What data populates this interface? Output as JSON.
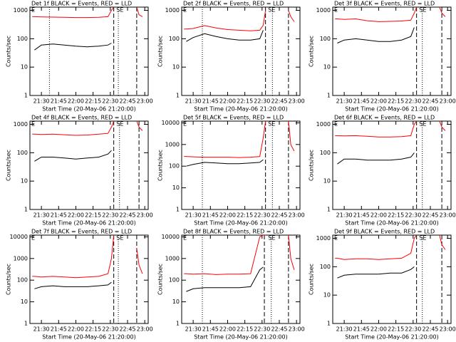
{
  "chart_data": [
    {
      "type": "line",
      "title": "Det 1f BLACK = Events, RED = LLD",
      "xlabel": "Start Time (20-May-06 21:20:00)",
      "ylabel": "Counts/sec",
      "log_y": true,
      "x": [
        "21:22",
        "21:24",
        "21:30",
        "21:40",
        "21:50",
        "22:00",
        "22:10",
        "22:20",
        "22:28",
        "22:31",
        "22:33",
        "22:40",
        "22:53",
        "22:55",
        "22:58"
      ],
      "xlim": [
        "21:20",
        "23:03"
      ],
      "xticks": [
        "21:30",
        "21:45",
        "22:00",
        "22:15",
        "22:30",
        "22:45",
        "23:00"
      ],
      "ylim": [
        1,
        1300
      ],
      "yticks": [
        1,
        10,
        100,
        1000
      ],
      "series": [
        {
          "color": "#ff0000",
          "values": [
            600,
            600,
            590,
            580,
            570,
            560,
            560,
            570,
            600,
            1000,
            1300,
            null,
            1300,
            700,
            600
          ]
        },
        {
          "color": "#000000",
          "values": [
            null,
            40,
            60,
            65,
            60,
            55,
            52,
            55,
            60,
            70,
            null,
            null,
            null,
            null,
            null
          ]
        }
      ],
      "vlines": [
        {
          "x": "21:37",
          "style": "dotted"
        },
        {
          "x": "22:33",
          "style": "dashed"
        },
        {
          "x": "22:37",
          "style": "dotted"
        },
        {
          "x": "22:53",
          "style": "dashed"
        }
      ],
      "annotations": [
        {
          "text": "E",
          "x": "21:20"
        },
        {
          "text": "SE",
          "x": "22:34"
        }
      ]
    },
    {
      "type": "line",
      "title": "Det 2f BLACK = Events, RED = LLD",
      "xlabel": "Start Time (20-May-06 21:20:00)",
      "ylabel": "Counts/sec",
      "log_y": true,
      "x": [
        "21:22",
        "21:24",
        "21:30",
        "21:40",
        "21:50",
        "22:00",
        "22:10",
        "22:20",
        "22:28",
        "22:31",
        "22:33",
        "22:40",
        "22:53",
        "22:55",
        "22:58"
      ],
      "xlim": [
        "21:20",
        "23:03"
      ],
      "xticks": [
        "21:30",
        "21:45",
        "22:00",
        "22:15",
        "22:30",
        "22:45",
        "23:00"
      ],
      "ylim": [
        1,
        1300
      ],
      "yticks": [
        1,
        10,
        100,
        1000
      ],
      "series": [
        {
          "color": "#ff0000",
          "values": [
            220,
            220,
            230,
            290,
            240,
            210,
            200,
            190,
            200,
            300,
            1000,
            null,
            1000,
            600,
            400
          ]
        },
        {
          "color": "#000000",
          "values": [
            null,
            80,
            110,
            150,
            120,
            100,
            90,
            90,
            100,
            200,
            null,
            null,
            null,
            null,
            null
          ]
        }
      ],
      "vlines": [
        {
          "x": "21:38",
          "style": "dotted"
        },
        {
          "x": "22:33",
          "style": "dashed"
        },
        {
          "x": "22:39",
          "style": "dotted"
        },
        {
          "x": "22:53",
          "style": "dashed"
        }
      ],
      "annotations": [
        {
          "text": "E",
          "x": "21:20"
        },
        {
          "text": "SE",
          "x": "22:34"
        }
      ]
    },
    {
      "type": "line",
      "title": "Det 3f BLACK = Events, RED = LLD",
      "xlabel": "Start Time (20-May-06 21:20:00)",
      "ylabel": "Counts/sec",
      "log_y": true,
      "x": [
        "21:22",
        "21:24",
        "21:30",
        "21:40",
        "21:50",
        "22:00",
        "22:10",
        "22:20",
        "22:28",
        "22:31",
        "22:33",
        "22:40",
        "22:53",
        "22:55",
        "22:58"
      ],
      "xlim": [
        "21:20",
        "23:03"
      ],
      "xticks": [
        "21:30",
        "21:45",
        "22:00",
        "22:15",
        "22:30",
        "22:45",
        "23:00"
      ],
      "ylim": [
        1,
        1300
      ],
      "yticks": [
        1,
        10,
        100,
        1000
      ],
      "series": [
        {
          "color": "#ff0000",
          "values": [
            500,
            500,
            480,
            500,
            430,
            400,
            410,
            420,
            450,
            800,
            1300,
            null,
            1300,
            800,
            600
          ]
        },
        {
          "color": "#000000",
          "values": [
            null,
            70,
            90,
            100,
            90,
            80,
            80,
            90,
            120,
            250,
            null,
            null,
            null,
            null,
            null
          ]
        }
      ],
      "vlines": [
        {
          "x": "22:33",
          "style": "dashed"
        },
        {
          "x": "22:38",
          "style": "dotted"
        },
        {
          "x": "22:55",
          "style": "dashed"
        }
      ],
      "annotations": [
        {
          "text": "E",
          "x": "21:20"
        },
        {
          "text": "SE",
          "x": "22:34"
        }
      ]
    },
    {
      "type": "line",
      "title": "Det 4f BLACK = Events, RED = LLD",
      "xlabel": "Start Time (20-May-06 21:20:00)",
      "ylabel": "Counts/sec",
      "log_y": true,
      "x": [
        "21:22",
        "21:24",
        "21:30",
        "21:40",
        "21:50",
        "22:00",
        "22:10",
        "22:20",
        "22:28",
        "22:31",
        "22:33",
        "22:40",
        "22:53",
        "22:55",
        "22:58"
      ],
      "xlim": [
        "21:20",
        "23:03"
      ],
      "xticks": [
        "21:30",
        "21:45",
        "22:00",
        "22:15",
        "22:30",
        "22:45",
        "23:00"
      ],
      "ylim": [
        1,
        1300
      ],
      "yticks": [
        1,
        10,
        100,
        1000
      ],
      "series": [
        {
          "color": "#ff0000",
          "values": [
            450,
            450,
            440,
            450,
            430,
            410,
            420,
            450,
            480,
            800,
            1300,
            null,
            1300,
            800,
            600
          ]
        },
        {
          "color": "#000000",
          "values": [
            null,
            50,
            70,
            70,
            65,
            60,
            65,
            70,
            90,
            120,
            null,
            null,
            null,
            null,
            null
          ]
        }
      ],
      "vlines": [
        {
          "x": "22:33",
          "style": "dashed"
        },
        {
          "x": "22:38",
          "style": "dotted"
        },
        {
          "x": "22:55",
          "style": "dashed"
        }
      ],
      "annotations": [
        {
          "text": "E",
          "x": "21:20"
        },
        {
          "text": "SE",
          "x": "22:34"
        }
      ]
    },
    {
      "type": "line",
      "title": "Det 5f BLACK = Events, RED = LLD",
      "xlabel": "Start Time (20-May-06 21:20:00)",
      "ylabel": "Counts/sec",
      "log_y": true,
      "x": [
        "21:22",
        "21:24",
        "21:30",
        "21:40",
        "21:50",
        "22:00",
        "22:10",
        "22:20",
        "22:28",
        "22:31",
        "22:33",
        "22:40",
        "22:53",
        "22:55",
        "22:58"
      ],
      "xlim": [
        "21:20",
        "23:03"
      ],
      "xticks": [
        "21:30",
        "21:45",
        "22:00",
        "22:15",
        "22:30",
        "22:45",
        "23:00"
      ],
      "ylim": [
        1,
        12000
      ],
      "yticks": [
        1,
        10,
        100,
        1000,
        10000
      ],
      "series": [
        {
          "color": "#ff0000",
          "values": [
            280,
            280,
            270,
            260,
            260,
            260,
            250,
            260,
            280,
            2000,
            12000,
            null,
            12000,
            1000,
            500
          ]
        },
        {
          "color": "#000000",
          "values": [
            null,
            100,
            120,
            150,
            140,
            130,
            130,
            140,
            150,
            200,
            null,
            null,
            null,
            null,
            null
          ]
        }
      ],
      "vlines": [
        {
          "x": "21:38",
          "style": "dotted"
        },
        {
          "x": "22:33",
          "style": "dashed"
        },
        {
          "x": "22:39",
          "style": "dotted"
        },
        {
          "x": "22:53",
          "style": "dashed"
        }
      ],
      "annotations": [
        {
          "text": "E",
          "x": "21:20"
        },
        {
          "text": "SE",
          "x": "22:34"
        }
      ]
    },
    {
      "type": "line",
      "title": "Det 6f BLACK = Events, RED = LLD",
      "xlabel": "Start Time (20-May-06 21:20:00)",
      "ylabel": "Counts/sec",
      "log_y": true,
      "x": [
        "21:22",
        "21:24",
        "21:30",
        "21:40",
        "21:50",
        "22:00",
        "22:10",
        "22:20",
        "22:28",
        "22:31",
        "22:33",
        "22:40",
        "22:53",
        "22:55",
        "22:58"
      ],
      "xlim": [
        "21:20",
        "23:03"
      ],
      "xticks": [
        "21:30",
        "21:45",
        "22:00",
        "22:15",
        "22:30",
        "22:45",
        "23:00"
      ],
      "ylim": [
        1,
        1300
      ],
      "yticks": [
        1,
        10,
        100,
        1000
      ],
      "series": [
        {
          "color": "#ff0000",
          "values": [
            400,
            400,
            390,
            400,
            380,
            360,
            360,
            370,
            400,
            1000,
            1300,
            null,
            1300,
            800,
            600
          ]
        },
        {
          "color": "#000000",
          "values": [
            null,
            40,
            60,
            60,
            55,
            55,
            55,
            60,
            70,
            100,
            null,
            null,
            null,
            null,
            null
          ]
        }
      ],
      "vlines": [
        {
          "x": "22:33",
          "style": "dashed"
        },
        {
          "x": "22:38",
          "style": "dotted"
        },
        {
          "x": "22:55",
          "style": "dashed"
        }
      ],
      "annotations": [
        {
          "text": "E",
          "x": "21:20"
        },
        {
          "text": "SE",
          "x": "22:34"
        }
      ]
    },
    {
      "type": "line",
      "title": "Det 7f BLACK = Events, RED = LLD",
      "xlabel": "Start Time (20-May-06 21:20:00)",
      "ylabel": "Counts/sec",
      "log_y": true,
      "x": [
        "21:22",
        "21:24",
        "21:30",
        "21:40",
        "21:50",
        "22:00",
        "22:10",
        "22:20",
        "22:28",
        "22:31",
        "22:33",
        "22:40",
        "22:53",
        "22:55",
        "22:58"
      ],
      "xlim": [
        "21:20",
        "23:03"
      ],
      "xticks": [
        "21:30",
        "21:45",
        "22:00",
        "22:15",
        "22:30",
        "22:45",
        "23:00"
      ],
      "ylim": [
        1,
        12000
      ],
      "yticks": [
        1,
        10,
        100,
        1000,
        10000
      ],
      "series": [
        {
          "color": "#ff0000",
          "values": [
            150,
            150,
            140,
            150,
            140,
            130,
            140,
            150,
            200,
            1000,
            12000,
            null,
            3000,
            500,
            200
          ]
        },
        {
          "color": "#000000",
          "values": [
            null,
            40,
            50,
            55,
            50,
            50,
            50,
            55,
            60,
            80,
            null,
            null,
            null,
            null,
            null
          ]
        }
      ],
      "vlines": [
        {
          "x": "22:33",
          "style": "dashed"
        },
        {
          "x": "22:37",
          "style": "dotted"
        },
        {
          "x": "22:53",
          "style": "dashed"
        }
      ],
      "annotations": [
        {
          "text": "E",
          "x": "21:20"
        },
        {
          "text": "SE",
          "x": "22:34"
        }
      ]
    },
    {
      "type": "line",
      "title": "Det 8f BLACK = Events, RED = LLD",
      "xlabel": "Start Time (20-May-06 21:20:00)",
      "ylabel": "Counts/sec",
      "log_y": true,
      "x": [
        "21:22",
        "21:24",
        "21:30",
        "21:40",
        "21:50",
        "22:00",
        "22:10",
        "22:20",
        "22:28",
        "22:31",
        "22:33",
        "22:40",
        "22:53",
        "22:55",
        "22:58"
      ],
      "xlim": [
        "21:20",
        "23:03"
      ],
      "xticks": [
        "21:30",
        "21:45",
        "22:00",
        "22:15",
        "22:30",
        "22:45",
        "23:00"
      ],
      "ylim": [
        1,
        12000
      ],
      "yticks": [
        1,
        10,
        100,
        1000,
        10000
      ],
      "series": [
        {
          "color": "#ff0000",
          "values": [
            200,
            200,
            190,
            200,
            180,
            190,
            190,
            200,
            10000,
            12000,
            12000,
            null,
            12000,
            1000,
            300
          ]
        },
        {
          "color": "#000000",
          "values": [
            null,
            30,
            40,
            45,
            45,
            45,
            45,
            50,
            300,
            400,
            null,
            null,
            null,
            null,
            null
          ]
        }
      ],
      "vlines": [
        {
          "x": "21:38",
          "style": "dotted"
        },
        {
          "x": "22:32",
          "style": "dashed"
        },
        {
          "x": "22:38",
          "style": "dotted"
        },
        {
          "x": "22:53",
          "style": "dashed"
        }
      ],
      "annotations": [
        {
          "text": "E",
          "x": "21:20"
        },
        {
          "text": "SE",
          "x": "22:34"
        }
      ]
    },
    {
      "type": "line",
      "title": "Det 9f BLACK = Events, RED = LLD",
      "xlabel": "Start Time (20-May-06 21:20:00)",
      "ylabel": "Counts/sec",
      "log_y": true,
      "x": [
        "21:22",
        "21:24",
        "21:30",
        "21:40",
        "21:50",
        "22:00",
        "22:10",
        "22:20",
        "22:28",
        "22:31",
        "22:33",
        "22:40",
        "22:53",
        "22:55",
        "22:58"
      ],
      "xlim": [
        "21:20",
        "23:03"
      ],
      "xticks": [
        "21:30",
        "21:45",
        "22:00",
        "22:15",
        "22:30",
        "22:45",
        "23:00"
      ],
      "ylim": [
        1,
        1300
      ],
      "yticks": [
        1,
        10,
        100,
        1000
      ],
      "series": [
        {
          "color": "#ff0000",
          "values": [
            200,
            200,
            180,
            190,
            190,
            180,
            190,
            200,
            300,
            1000,
            1300,
            null,
            1300,
            600,
            400
          ]
        },
        {
          "color": "#000000",
          "values": [
            null,
            40,
            50,
            55,
            55,
            55,
            60,
            60,
            80,
            100,
            null,
            null,
            null,
            null,
            null
          ]
        }
      ],
      "vlines": [
        {
          "x": "22:33",
          "style": "dashed"
        },
        {
          "x": "22:38",
          "style": "dotted"
        },
        {
          "x": "22:55",
          "style": "dashed"
        }
      ],
      "annotations": [
        {
          "text": "E",
          "x": "21:20"
        },
        {
          "text": "SE",
          "x": "22:34"
        }
      ]
    }
  ]
}
